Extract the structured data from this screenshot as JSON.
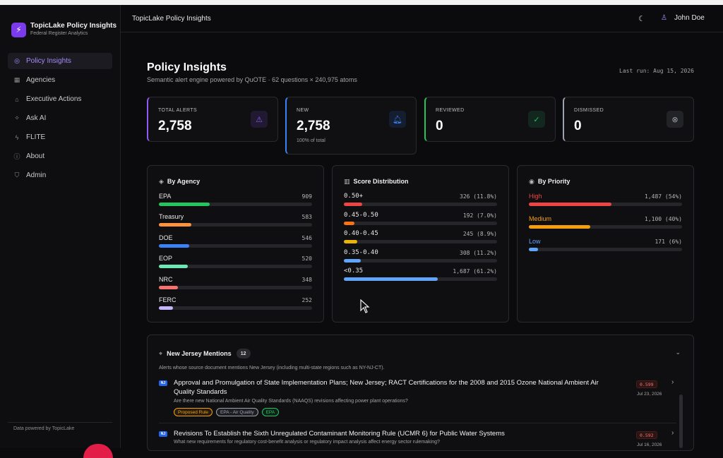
{
  "app": {
    "name": "TopicLake Policy Insights",
    "subtitle": "Federal Register Analytics",
    "footer": "Data powered by TopicLake"
  },
  "sidebar": {
    "items": [
      {
        "label": "Policy Insights",
        "icon": "radar-icon",
        "active": true
      },
      {
        "label": "Agencies",
        "icon": "building-icon",
        "active": false
      },
      {
        "label": "Executive Actions",
        "icon": "landmark-icon",
        "active": false
      },
      {
        "label": "Ask AI",
        "icon": "sparkles-icon",
        "active": false
      },
      {
        "label": "FLITE",
        "icon": "bolt-icon",
        "active": false
      },
      {
        "label": "About",
        "icon": "info-icon",
        "active": false
      },
      {
        "label": "Admin",
        "icon": "shield-icon",
        "active": false
      }
    ]
  },
  "topbar": {
    "title": "TopicLake Policy Insights",
    "user": "John Doe"
  },
  "header": {
    "title": "Policy Insights",
    "subtitle": "Semantic alert engine powered by QuOTE · 62 questions × 240,975 atoms",
    "last_run": "Last run: Aug 15, 2026"
  },
  "stats": [
    {
      "label": "TOTAL ALERTS",
      "value": "2,758",
      "note": "",
      "color": "#8b5cf6",
      "icon": "warning-icon"
    },
    {
      "label": "NEW",
      "value": "2,758",
      "note": "100% of total",
      "color": "#3b82f6",
      "icon": "bell-icon"
    },
    {
      "label": "REVIEWED",
      "value": "0",
      "note": "",
      "color": "#22c55e",
      "icon": "check-circle-icon"
    },
    {
      "label": "DISMISSED",
      "value": "0",
      "note": "",
      "color": "#9ca3af",
      "icon": "x-circle-icon"
    }
  ],
  "by_agency": {
    "title": "By Agency",
    "max": 2758,
    "rows": [
      {
        "name": "EPA",
        "count": "909",
        "value": 909,
        "color": "#22c55e"
      },
      {
        "name": "Treasury",
        "count": "583",
        "value": 583,
        "color": "#fb923c"
      },
      {
        "name": "DOE",
        "count": "546",
        "value": 546,
        "color": "#3b82f6"
      },
      {
        "name": "EOP",
        "count": "520",
        "value": 520,
        "color": "#6ee7b7"
      },
      {
        "name": "NRC",
        "count": "348",
        "value": 348,
        "color": "#f87171"
      },
      {
        "name": "FERC",
        "count": "252",
        "value": 252,
        "color": "#c4b5fd"
      }
    ]
  },
  "score_distribution": {
    "title": "Score Distribution",
    "rows": [
      {
        "name": "0.50+",
        "count": "326 (11.8%)",
        "pct": 11.8,
        "color": "#ef4444"
      },
      {
        "name": "0.45-0.50",
        "count": "192 (7.0%)",
        "pct": 7.0,
        "color": "#f97316"
      },
      {
        "name": "0.40-0.45",
        "count": "245 (8.9%)",
        "pct": 8.9,
        "color": "#eab308"
      },
      {
        "name": "0.35-0.40",
        "count": "308 (11.2%)",
        "pct": 11.2,
        "color": "#60a5fa"
      },
      {
        "name": "<0.35",
        "count": "1,687 (61.2%)",
        "pct": 61.2,
        "color": "#60a5fa"
      }
    ]
  },
  "by_priority": {
    "title": "By Priority",
    "rows": [
      {
        "name": "High",
        "count": "1,487 (54%)",
        "pct": 54,
        "color": "#ef4444"
      },
      {
        "name": "Medium",
        "count": "1,100 (40%)",
        "pct": 40,
        "color": "#f59e0b"
      },
      {
        "name": "Low",
        "count": "171 (6%)",
        "pct": 6,
        "color": "#60a5fa"
      }
    ]
  },
  "nj": {
    "title": "New Jersey Mentions",
    "count": "12",
    "description": "Alerts whose source document mentions New Jersey (including multi-state regions such as NY-NJ-CT).",
    "alerts": [
      {
        "state": "NJ",
        "title": "Approval and Promulgation of State Implementation Plans; New Jersey; RACT Certifications for the 2008 and 2015 Ozone National Ambient Air Quality Standards",
        "question": "Are there new National Ambient Air Quality Standards (NAAQS) revisions affecting power plant operations?",
        "tags": [
          {
            "label": "Proposed Rule",
            "color": "#f59e0b"
          },
          {
            "label": "EPA - Air Quality",
            "color": "#9ca3af"
          },
          {
            "label": "EPA",
            "color": "#22c55e"
          }
        ],
        "score": "0.599",
        "date": "Jul 23, 2026"
      },
      {
        "state": "NJ",
        "title": "Revisions To Establish the Sixth Unregulated Contaminant Monitoring Rule (UCMR 6) for Public Water Systems",
        "question": "What new requirements for regulatory cost-benefit analysis or regulatory impact analysis affect energy sector rulemaking?",
        "tags": [],
        "score": "0.592",
        "date": "Jul 16, 2026"
      }
    ]
  }
}
